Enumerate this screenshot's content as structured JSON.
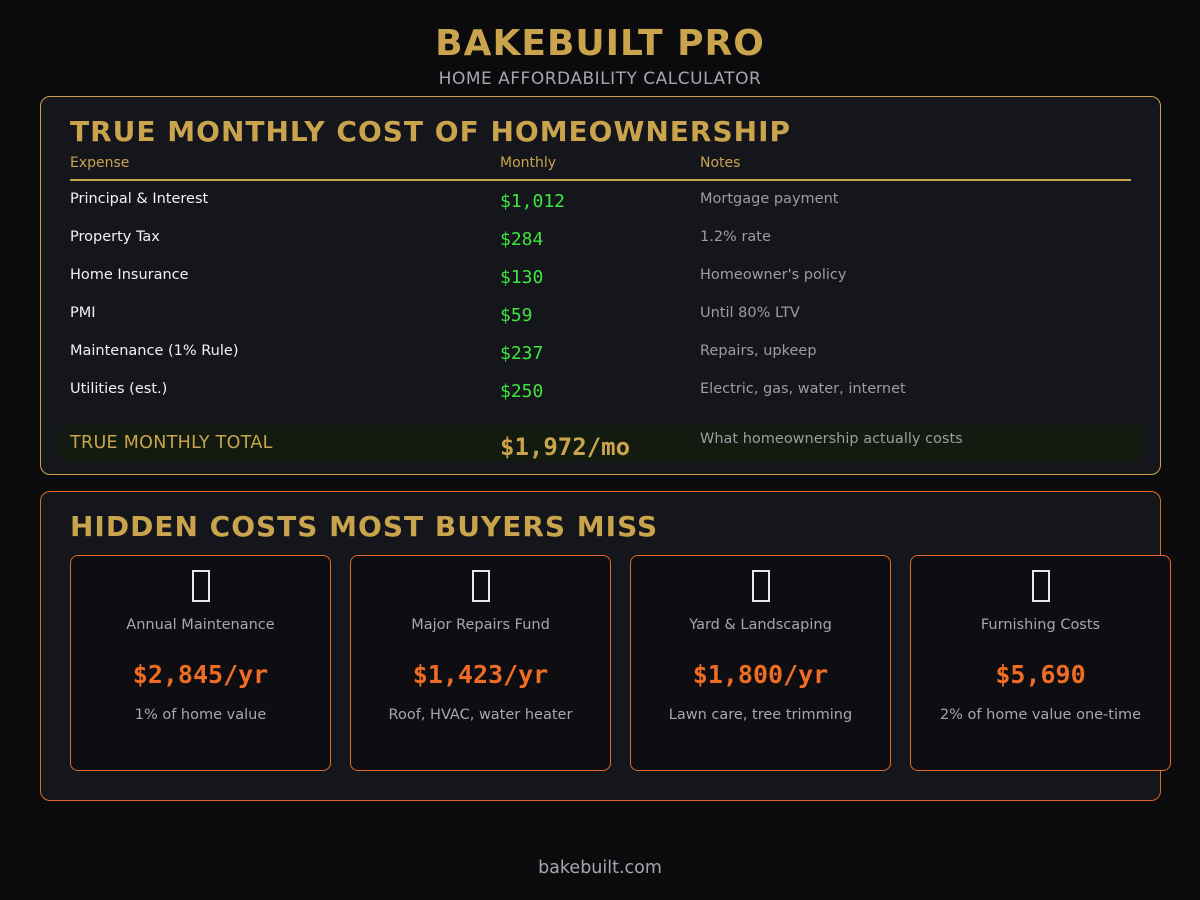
{
  "header": {
    "brand": "BAKEBUILT PRO",
    "subtitle": "HOME AFFORDABILITY CALCULATOR"
  },
  "monthly_cost": {
    "title": "TRUE MONTHLY COST OF HOMEOWNERSHIP",
    "columns": {
      "expense": "Expense",
      "monthly": "Monthly",
      "notes": "Notes"
    },
    "rows": [
      {
        "expense": "Principal & Interest",
        "monthly": "$1,012",
        "notes": "Mortgage payment"
      },
      {
        "expense": "Property Tax",
        "monthly": "$284",
        "notes": "1.2% rate"
      },
      {
        "expense": "Home Insurance",
        "monthly": "$130",
        "notes": "Homeowner's policy"
      },
      {
        "expense": "PMI",
        "monthly": "$59",
        "notes": "Until 80% LTV"
      },
      {
        "expense": "Maintenance (1% Rule)",
        "monthly": "$237",
        "notes": "Repairs, upkeep"
      },
      {
        "expense": "Utilities (est.)",
        "monthly": "$250",
        "notes": "Electric, gas, water, internet"
      }
    ],
    "total": {
      "label": "TRUE MONTHLY TOTAL",
      "value": "$1,972/mo",
      "notes": "What homeownership actually costs"
    }
  },
  "hidden_costs": {
    "title": "HIDDEN COSTS MOST BUYERS MISS",
    "cards": [
      {
        "icon": "missing-glyph-icon",
        "label": "Annual Maintenance",
        "value": "$2,845/yr",
        "note": "1% of home value"
      },
      {
        "icon": "missing-glyph-icon",
        "label": "Major Repairs Fund",
        "value": "$1,423/yr",
        "note": "Roof, HVAC, water heater"
      },
      {
        "icon": "missing-glyph-icon",
        "label": "Yard & Landscaping",
        "value": "$1,800/yr",
        "note": "Lawn care, tree trimming"
      },
      {
        "icon": "missing-glyph-icon",
        "label": "Furnishing Costs",
        "value": "$5,690",
        "note": "2% of home value one-time"
      }
    ]
  },
  "footer": {
    "text": "bakebuilt.com"
  },
  "colors": {
    "background": "#0b0b0e",
    "panel": "#15151c",
    "gold_accent": "#c9a44c",
    "orange_accent": "#e06a26",
    "value_green": "#3ee53e",
    "value_orange": "#ef6c25",
    "muted_text": "#a6a6ad"
  }
}
